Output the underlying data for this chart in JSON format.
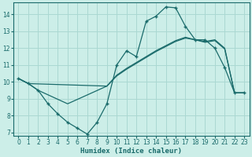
{
  "xlabel": "Humidex (Indice chaleur)",
  "bg_color": "#cceee8",
  "grid_color": "#aad8d2",
  "line_color": "#1a6b6b",
  "xlim": [
    -0.5,
    23.5
  ],
  "ylim": [
    6.8,
    14.7
  ],
  "yticks": [
    7,
    8,
    9,
    10,
    11,
    12,
    13,
    14
  ],
  "xticks": [
    0,
    1,
    2,
    3,
    4,
    5,
    6,
    7,
    8,
    9,
    10,
    11,
    12,
    13,
    14,
    15,
    16,
    17,
    18,
    19,
    20,
    21,
    22,
    23
  ],
  "line1_x": [
    0,
    1,
    2,
    3,
    4,
    5,
    6,
    7,
    8,
    9,
    10,
    11,
    12,
    13,
    14,
    15,
    16,
    17,
    18,
    19,
    20,
    21,
    22,
    23
  ],
  "line1_y": [
    10.2,
    9.9,
    9.5,
    8.7,
    8.1,
    7.6,
    7.25,
    6.9,
    7.6,
    8.7,
    11.0,
    11.85,
    11.5,
    13.6,
    13.9,
    14.45,
    14.4,
    13.3,
    12.5,
    12.5,
    12.0,
    10.85,
    9.35,
    9.35
  ],
  "line2_x": [
    0,
    1,
    9,
    10,
    11,
    12,
    13,
    14,
    15,
    16,
    17,
    18,
    19,
    20,
    21,
    22,
    23
  ],
  "line2_y": [
    10.2,
    9.9,
    9.75,
    10.4,
    10.8,
    11.15,
    11.5,
    11.85,
    12.15,
    12.45,
    12.65,
    12.5,
    12.4,
    12.5,
    12.0,
    9.35,
    9.35
  ],
  "line3_x": [
    0,
    1,
    2,
    5,
    9,
    10,
    11,
    12,
    13,
    14,
    15,
    16,
    17,
    18,
    19,
    20,
    21,
    22,
    23
  ],
  "line3_y": [
    10.2,
    9.9,
    9.5,
    8.7,
    9.75,
    10.35,
    10.75,
    11.1,
    11.45,
    11.8,
    12.1,
    12.4,
    12.6,
    12.5,
    12.35,
    12.45,
    11.95,
    9.35,
    9.35
  ]
}
